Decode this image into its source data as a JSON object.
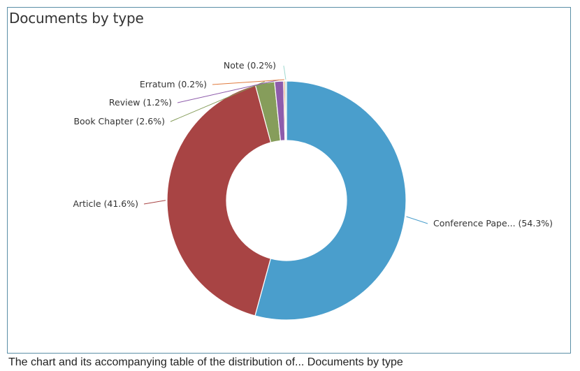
{
  "chart_data": {
    "type": "pie",
    "title": "Documents by type",
    "categories": [
      "Conference Pape...",
      "Article",
      "Book Chapter",
      "Review",
      "Erratum",
      "Note"
    ],
    "values": [
      54.3,
      41.6,
      2.6,
      1.2,
      0.2,
      0.2
    ],
    "labels": [
      "Conference Pape... (54.3%)",
      "Article (41.6%)",
      "Book Chapter (2.6%)",
      "Review (1.2%)",
      "Erratum (0.2%)",
      "Note (0.2%)"
    ],
    "colors": [
      "#4a9ecc",
      "#a84444",
      "#869d5b",
      "#8e5cab",
      "#e07b3e",
      "#9fd9d0"
    ],
    "donut": true,
    "legend": "none"
  },
  "footer": {
    "text": "The chart and its accompanying table of the distribution of... Documents by type"
  }
}
